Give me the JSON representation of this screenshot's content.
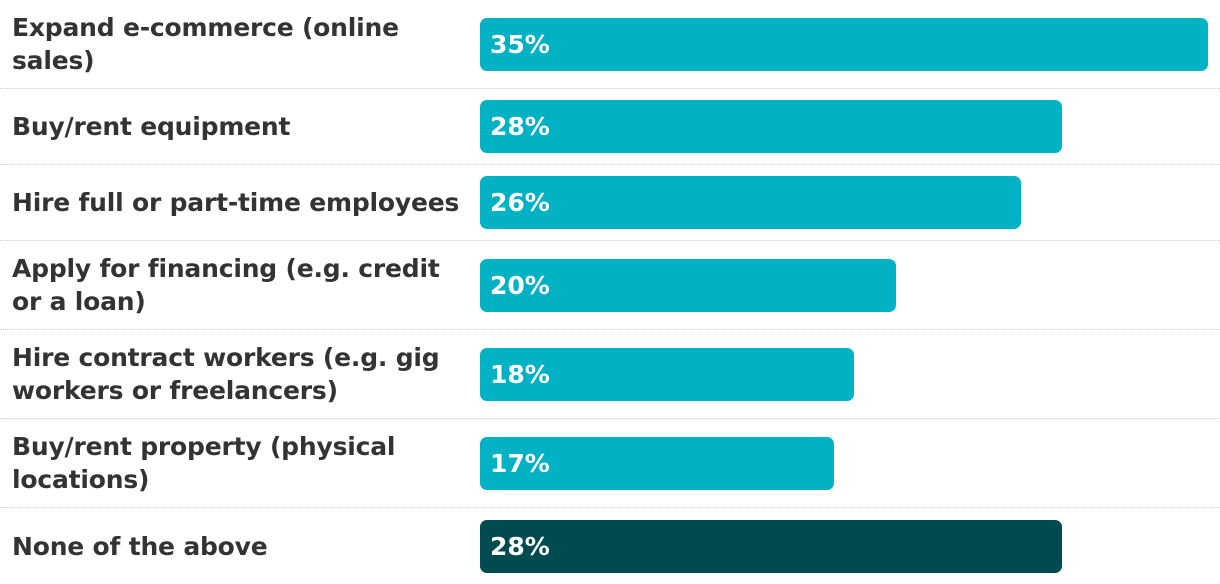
{
  "chart_data": {
    "type": "bar",
    "orientation": "horizontal",
    "categories": [
      "Expand e-commerce (online sales)",
      "Buy/rent equipment",
      "Hire full or part-time employees",
      "Apply for financing (e.g. credit or a loan)",
      "Hire contract workers (e.g. gig workers or freelancers)",
      "Buy/rent property (physical locations)",
      "None of the above"
    ],
    "values": [
      35,
      28,
      26,
      20,
      18,
      17,
      28
    ],
    "value_labels": [
      "35%",
      "28%",
      "26%",
      "20%",
      "18%",
      "17%",
      "28%"
    ],
    "colors": [
      "#00b2c3",
      "#00b2c3",
      "#00b2c3",
      "#00b2c3",
      "#00b2c3",
      "#00b2c3",
      "#004b50"
    ]
  }
}
